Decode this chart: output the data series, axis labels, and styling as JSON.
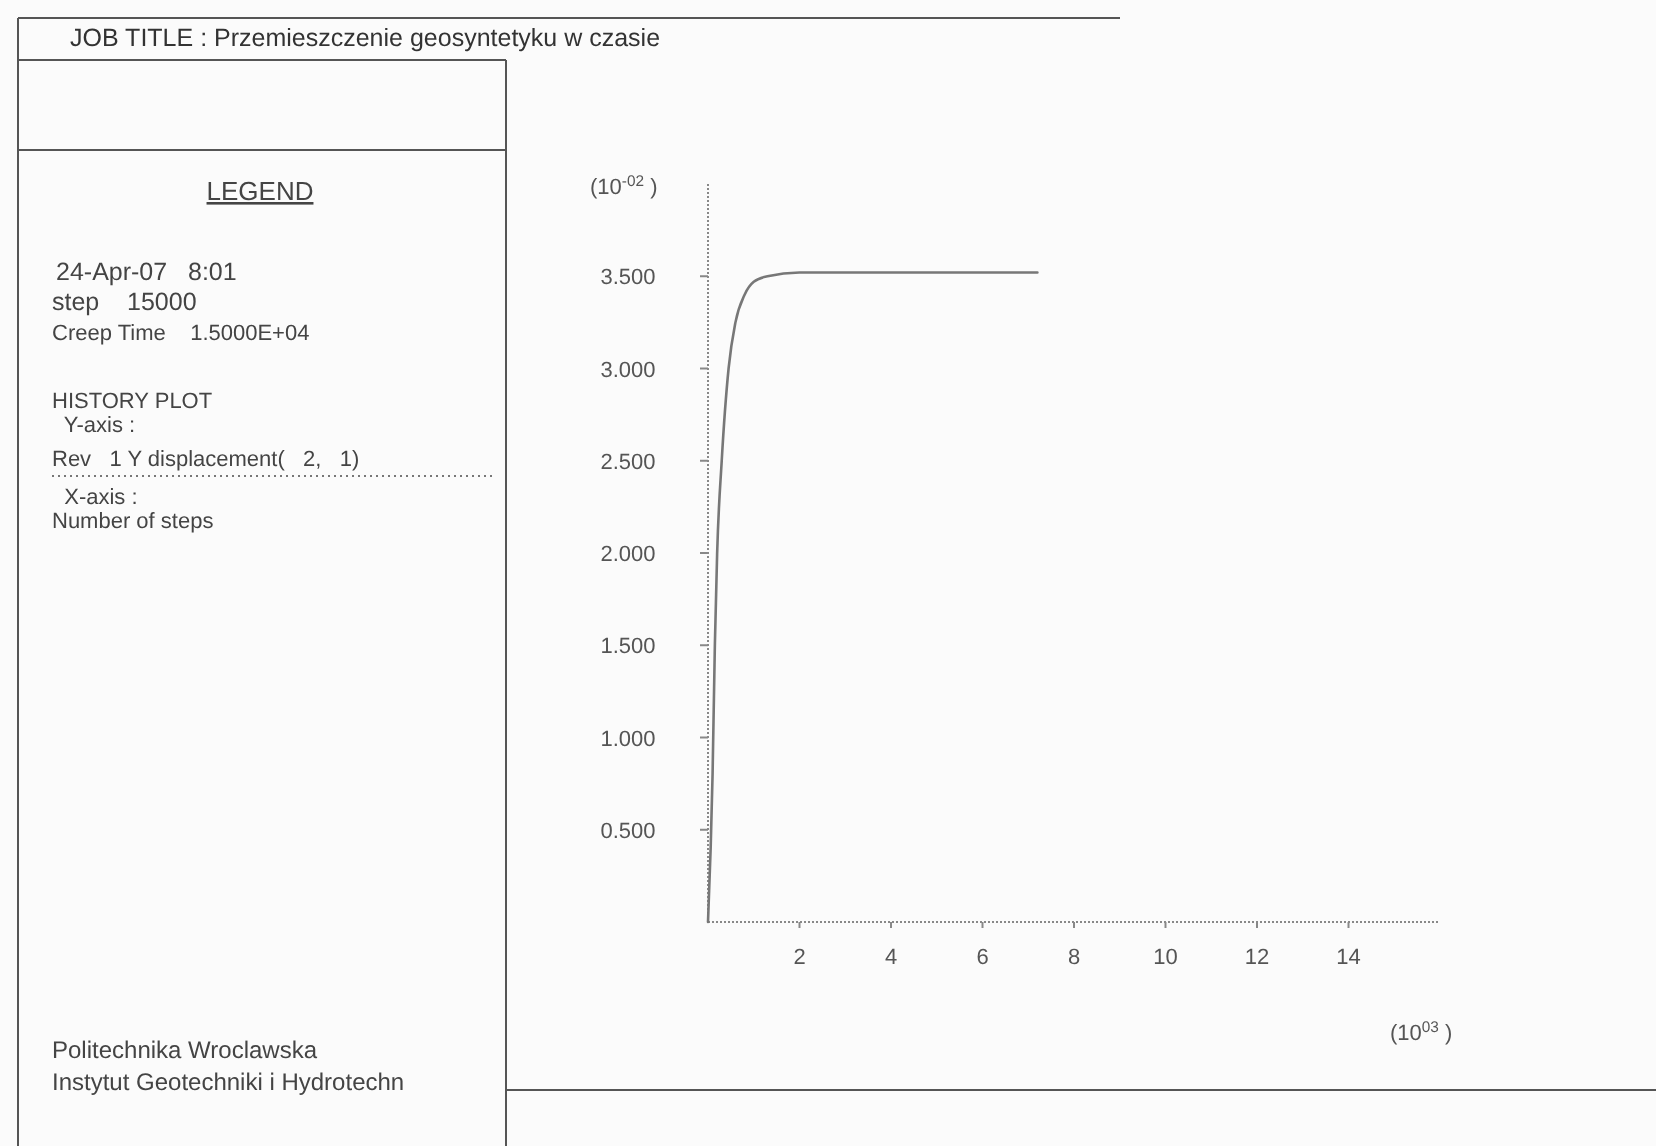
{
  "chart_data": {
    "type": "line",
    "title": "JOB TITLE : Przemieszczenie geosyntetyku w czasie",
    "xlabel": "(10$^{03}$ )",
    "ylabel": "(10$^{-02}$ )",
    "annotations": [
      "LEGEND",
      "24-Apr-07   8:01",
      "step    15000",
      "Creep Time    1.5000E+04",
      "HISTORY PLOT",
      "  Y-axis :",
      "  X-axis :",
      "Number of steps",
      "Politechnika Wroclawska",
      "Instytut Geotechniki i Hydrotechn"
    ],
    "xlim": [
      0,
      16
    ],
    "xticks": [
      2,
      4,
      6,
      8,
      10,
      12,
      14
    ],
    "ylim": [
      0,
      4
    ],
    "yticks": [
      {
        "value": 0.5,
        "label": "0.500"
      },
      {
        "value": 1,
        "label": "1.000"
      },
      {
        "value": 1.5,
        "label": "1.500"
      },
      {
        "value": 2,
        "label": "2.000"
      },
      {
        "value": 2.5,
        "label": "2.500"
      },
      {
        "value": 3,
        "label": "3.000"
      },
      {
        "value": 3.5,
        "label": "3.500"
      }
    ],
    "grid": false,
    "legend": "left",
    "line_style": "solid",
    "series": [
      {
        "name": "Rev   1 Y displacement(   2,   1)",
        "color": "#777777",
        "x": [
          0,
          0.1,
          0.15,
          0.2,
          0.3,
          0.45,
          0.6,
          0.8,
          1.0,
          1.3,
          2,
          4,
          7.2
        ],
        "values": [
          0,
          0.8,
          1.5,
          2.0,
          2.5,
          3.0,
          3.25,
          3.4,
          3.47,
          3.5,
          3.52,
          3.52,
          3.52
        ]
      }
    ]
  }
}
